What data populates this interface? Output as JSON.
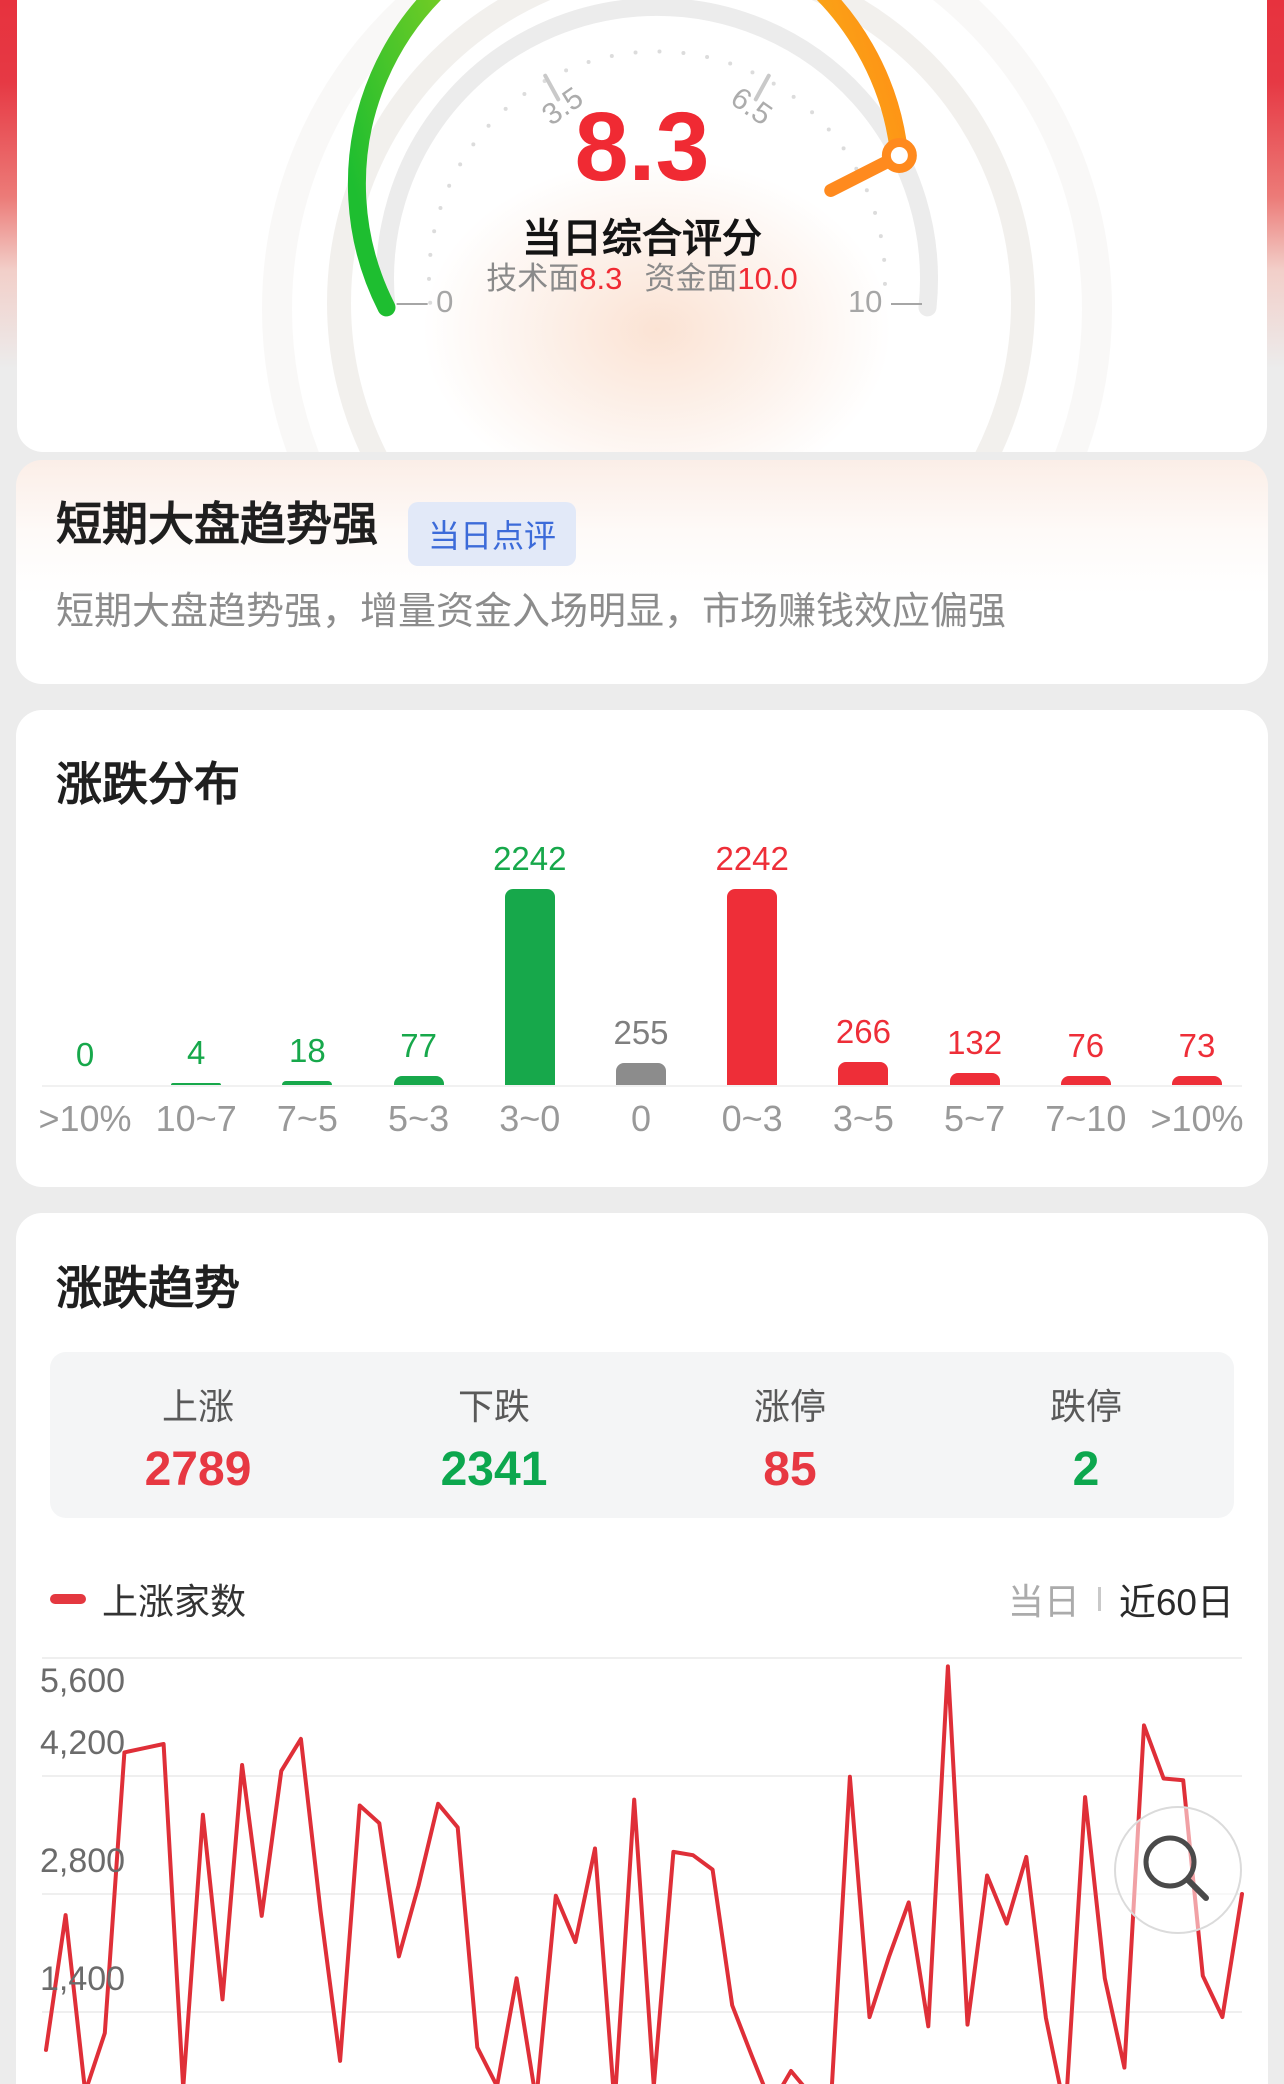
{
  "gauge": {
    "score": "8.3",
    "score_label": "当日综合评分",
    "sub_metrics": [
      {
        "label": "技术面",
        "value": "8.3"
      },
      {
        "label": "资金面",
        "value": "10.0"
      }
    ],
    "ticks": {
      "start": "— 0",
      "end": "10 —",
      "mid_left": "3.5",
      "mid_right": "6.5"
    },
    "colors": {
      "arc_start": "#1EBE30",
      "arc_mid1": "#A8D51E",
      "arc_mid2": "#F0CC1A",
      "arc_end": "#FF9015",
      "track": "#ECECEC",
      "needle": "#FF8A1E",
      "score": "#F02A33",
      "dots": "#DCDCDC",
      "major_tick": "#C9C9C9"
    }
  },
  "comment_card": {
    "title": "短期大盘趋势强",
    "badge": "当日点评",
    "badge_color": "#3C6BD9",
    "badge_bg": "#E2E9F8",
    "description": "短期大盘趋势强，增量资金入场明显，市场赚钱效应偏强"
  },
  "trend": {
    "title": "涨跌趋势",
    "stats": [
      {
        "label": "上涨",
        "value": "2789",
        "color": "#E73842"
      },
      {
        "label": "下跌",
        "value": "2341",
        "color": "#0CA74E"
      },
      {
        "label": "涨停",
        "value": "85",
        "color": "#E73842"
      },
      {
        "label": "跌停",
        "value": "2",
        "color": "#0CA74E"
      }
    ],
    "legend_series": "上涨家数",
    "legend_color": "#E43840",
    "range_toggle": [
      {
        "label": "当日",
        "active": false
      },
      {
        "label": "近60日",
        "active": true
      }
    ]
  },
  "chart_data": [
    {
      "type": "bar",
      "title": "涨跌分布",
      "categories": [
        ">10%",
        "10~7",
        "7~5",
        "5~3",
        "3~0",
        "0",
        "0~3",
        "3~5",
        "5~7",
        "7~10",
        ">10%"
      ],
      "values": [
        0,
        4,
        18,
        77,
        2242,
        255,
        2242,
        266,
        132,
        76,
        73
      ],
      "colors": [
        "#17A84B",
        "#17A84B",
        "#17A84B",
        "#17A84B",
        "#17A84B",
        "#8C8C8C",
        "#EE2E38",
        "#EE2E38",
        "#EE2E38",
        "#EE2E38",
        "#EE2E38"
      ],
      "label_colors": [
        "#17A84B",
        "#17A84B",
        "#17A84B",
        "#17A84B",
        "#17A84B",
        "#7F7F7F",
        "#EE2E38",
        "#EE2E38",
        "#EE2E38",
        "#EE2E38",
        "#EE2E38"
      ],
      "ylim": [
        0,
        2242
      ],
      "grid": false,
      "value_labels_shown": true
    },
    {
      "type": "line",
      "title": "上涨家数",
      "line_color": "#DF2F38",
      "y_ticks": [
        "5,600",
        "4,200",
        "2,800",
        "1,400"
      ],
      "y_tick_values": [
        5600,
        4200,
        2800,
        1400
      ],
      "grid": true,
      "x_range_label": "近60日",
      "values": [
        950,
        2550,
        450,
        1150,
        4480,
        4530,
        4580,
        500,
        3740,
        1550,
        4330,
        2540,
        4260,
        4640,
        2600,
        820,
        3850,
        3640,
        2060,
        2900,
        3870,
        3590,
        980,
        520,
        1800,
        350,
        2780,
        2230,
        3340,
        300,
        3920,
        520,
        3300,
        3260,
        3090,
        1480,
        880,
        300,
        700,
        420,
        200,
        4190,
        1340,
        2060,
        2700,
        1230,
        5500,
        1250,
        3020,
        2450,
        3240,
        1330,
        200,
        3950,
        1800,
        740,
        4800,
        4170,
        4150,
        1830,
        1340,
        2800
      ]
    }
  ]
}
